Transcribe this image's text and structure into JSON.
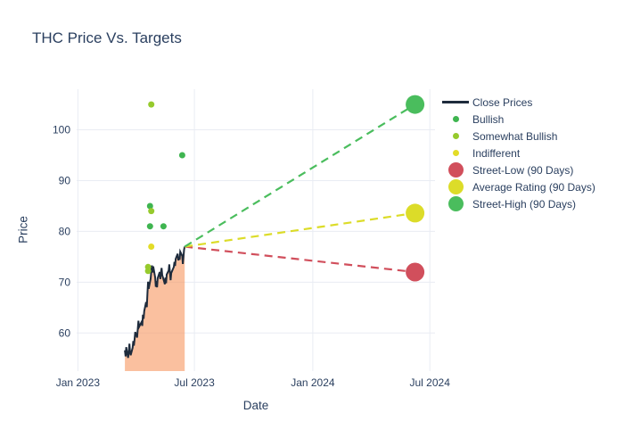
{
  "chart_data": {
    "type": "line",
    "title": "THC Price Vs. Targets",
    "xlabel": "Date",
    "ylabel": "Price",
    "grid": true,
    "legend_position": "top-right",
    "x_axis": {
      "range": [
        "2022-12-30",
        "2024-07-09"
      ],
      "ticks": [
        {
          "date": "2023-01-01",
          "label": "Jan 2023"
        },
        {
          "date": "2023-07-01",
          "label": "Jul 2023"
        },
        {
          "date": "2024-01-01",
          "label": "Jan 2024"
        },
        {
          "date": "2024-07-01",
          "label": "Jul 2024"
        }
      ]
    },
    "y_axis": {
      "range": [
        52.5,
        108
      ],
      "ticks": [
        60,
        70,
        80,
        90,
        100
      ]
    },
    "close_prices": {
      "label": "Close Prices",
      "color": "#1e2b3c",
      "fill_color": "rgba(247,150,95,0.6)",
      "points": [
        [
          "2023-03-15",
          56.6
        ],
        [
          "2023-03-16",
          55.4
        ],
        [
          "2023-03-17",
          57.2
        ],
        [
          "2023-03-20",
          55.1
        ],
        [
          "2023-03-21",
          56.4
        ],
        [
          "2023-03-22",
          57.9
        ],
        [
          "2023-03-23",
          56.2
        ],
        [
          "2023-03-24",
          55.6
        ],
        [
          "2023-03-27",
          57.1
        ],
        [
          "2023-03-28",
          58.4
        ],
        [
          "2023-03-29",
          57.5
        ],
        [
          "2023-03-30",
          58.8
        ],
        [
          "2023-03-31",
          60.2
        ],
        [
          "2023-04-03",
          59.1
        ],
        [
          "2023-04-04",
          60.9
        ],
        [
          "2023-04-05",
          62.4
        ],
        [
          "2023-04-06",
          61.2
        ],
        [
          "2023-04-10",
          62.2
        ],
        [
          "2023-04-11",
          61.4
        ],
        [
          "2023-04-12",
          63.6
        ],
        [
          "2023-04-13",
          62.8
        ],
        [
          "2023-04-14",
          64.3
        ],
        [
          "2023-04-17",
          66.1
        ],
        [
          "2023-04-18",
          65.1
        ],
        [
          "2023-04-19",
          67.8
        ],
        [
          "2023-04-20",
          70.1
        ],
        [
          "2023-04-21",
          68.7
        ],
        [
          "2023-04-24",
          70.7
        ],
        [
          "2023-04-25",
          72.1
        ],
        [
          "2023-04-26",
          73.3
        ],
        [
          "2023-04-27",
          71.9
        ],
        [
          "2023-04-28",
          73.1
        ],
        [
          "2023-05-01",
          70.9
        ],
        [
          "2023-05-02",
          69.1
        ],
        [
          "2023-05-03",
          70.2
        ],
        [
          "2023-05-04",
          69.0
        ],
        [
          "2023-05-05",
          70.8
        ],
        [
          "2023-05-08",
          72.0
        ],
        [
          "2023-05-09",
          70.6
        ],
        [
          "2023-05-10",
          71.9
        ],
        [
          "2023-05-11",
          72.8
        ],
        [
          "2023-05-12",
          71.4
        ],
        [
          "2023-05-15",
          70.1
        ],
        [
          "2023-05-16",
          69.6
        ],
        [
          "2023-05-17",
          70.9
        ],
        [
          "2023-05-18",
          69.8
        ],
        [
          "2023-05-19",
          71.5
        ],
        [
          "2023-05-22",
          72.3
        ],
        [
          "2023-05-23",
          73.5
        ],
        [
          "2023-05-24",
          72.0
        ],
        [
          "2023-05-25",
          70.4
        ],
        [
          "2023-05-26",
          71.8
        ],
        [
          "2023-05-30",
          73.0
        ],
        [
          "2023-05-31",
          74.0
        ],
        [
          "2023-06-01",
          73.2
        ],
        [
          "2023-06-02",
          74.6
        ],
        [
          "2023-06-05",
          75.6
        ],
        [
          "2023-06-06",
          74.3
        ],
        [
          "2023-06-07",
          75.0
        ],
        [
          "2023-06-08",
          74.4
        ],
        [
          "2023-06-09",
          76.0
        ],
        [
          "2023-06-12",
          75.2
        ],
        [
          "2023-06-13",
          73.6
        ],
        [
          "2023-06-15",
          76.4
        ],
        [
          "2023-06-16",
          77.0
        ]
      ]
    },
    "ratings": [
      {
        "label": "Bullish",
        "color": "#3fb550",
        "points": [
          [
            "2023-06-12",
            95
          ],
          [
            "2023-04-23",
            85
          ],
          [
            "2023-04-23",
            81
          ],
          [
            "2023-05-14",
            81
          ]
        ]
      },
      {
        "label": "Somewhat Bullish",
        "color": "#96ca2d",
        "points": [
          [
            "2023-04-25",
            105
          ],
          [
            "2023-04-25",
            84
          ],
          [
            "2023-04-20",
            73
          ],
          [
            "2023-04-20",
            72.2
          ]
        ]
      },
      {
        "label": "Indifferent",
        "color": "#e3dc28",
        "points": [
          [
            "2023-04-25",
            77
          ]
        ]
      }
    ],
    "last_close": {
      "date": "2023-06-16",
      "price": 77.0
    },
    "targets": [
      {
        "label": "Street-Low (90 Days)",
        "color": "#d14f5c",
        "value": 72,
        "date": "2024-06-08"
      },
      {
        "label": "Average Rating (90 Days)",
        "color": "#dcdc29",
        "value": 83.6,
        "date": "2024-06-08"
      },
      {
        "label": "Street-High (90 Days)",
        "color": "#4abd5d",
        "value": 105,
        "date": "2024-06-08"
      }
    ]
  }
}
